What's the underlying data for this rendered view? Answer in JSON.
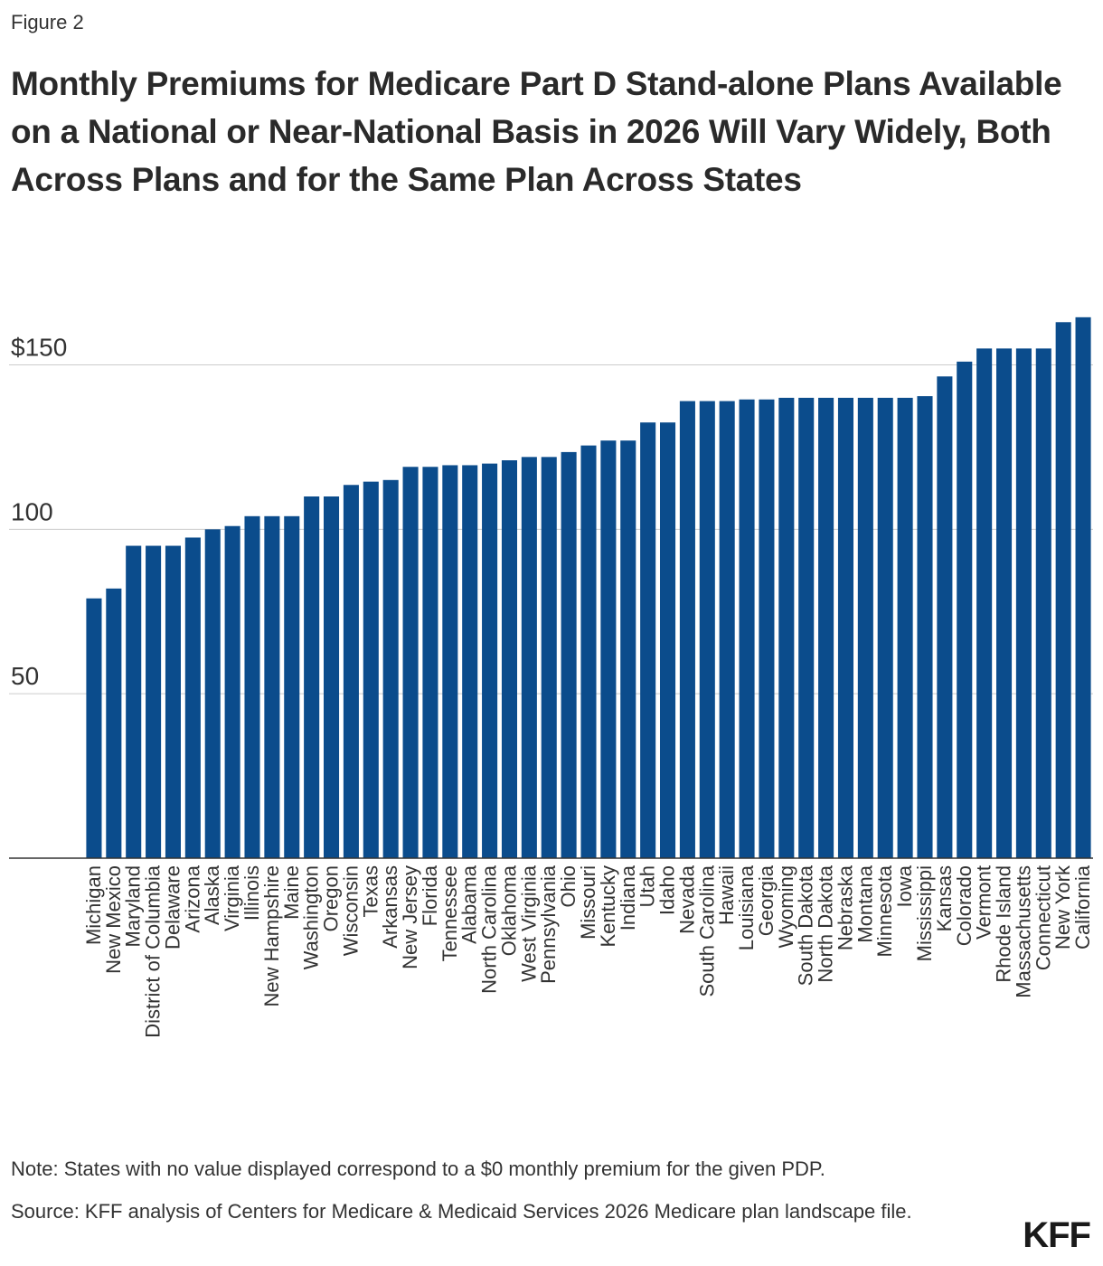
{
  "figure_label": "Figure 2",
  "title": "Monthly Premiums for Medicare Part D Stand-alone Plans Available on a National or Near-National Basis in 2026 Will Vary Widely, Both Across Plans and for the Same Plan Across States",
  "note": "Note: States with no value displayed correspond to a $0 monthly premium for the given PDP.",
  "source": "Source: KFF analysis of Centers for Medicare & Medicaid Services 2026 Medicare plan landscape file.",
  "logo_text": "KFF",
  "colors": {
    "bar": "#0b4c8c",
    "grid": "#cccccc",
    "axis": "#333333"
  },
  "chart_data": {
    "type": "bar",
    "title": "Monthly Premiums for Medicare Part D Stand-alone Plans Available on a National or Near-National Basis in 2026 Will Vary Widely, Both Across Plans and for the Same Plan Across States",
    "xlabel": "",
    "ylabel": "",
    "ylim": [
      0,
      165
    ],
    "yticks": [
      {
        "value": 50,
        "label": "50"
      },
      {
        "value": 100,
        "label": "100"
      },
      {
        "value": 150,
        "label": "$150"
      }
    ],
    "grid": true,
    "categories": [
      "Michigan",
      "New Mexico",
      "Maryland",
      "District of Columbia",
      "Delaware",
      "Arizona",
      "Alaska",
      "Virginia",
      "Illinois",
      "New Hampshire",
      "Maine",
      "Washington",
      "Oregon",
      "Wisconsin",
      "Texas",
      "Arkansas",
      "New Jersey",
      "Florida",
      "Tennessee",
      "Alabama",
      "North Carolina",
      "Oklahoma",
      "West Virginia",
      "Pennsylvania",
      "Ohio",
      "Missouri",
      "Kentucky",
      "Indiana",
      "Utah",
      "Idaho",
      "Nevada",
      "South Carolina",
      "Hawaii",
      "Louisiana",
      "Georgia",
      "Wyoming",
      "South Dakota",
      "North Dakota",
      "Nebraska",
      "Montana",
      "Minnesota",
      "Iowa",
      "Mississippi",
      "Kansas",
      "Colorado",
      "Vermont",
      "Rhode Island",
      "Massachusetts",
      "Connecticut",
      "New York",
      "California"
    ],
    "values": [
      79,
      82,
      95,
      95,
      95,
      97.5,
      100,
      101,
      104,
      104,
      104,
      110,
      110,
      113.5,
      114.5,
      115,
      119,
      119,
      119.5,
      119.5,
      120,
      121,
      122,
      122,
      123.5,
      125.5,
      127,
      127,
      132.5,
      132.5,
      139,
      139,
      139,
      139.5,
      139.5,
      140,
      140,
      140,
      140,
      140,
      140,
      140,
      140.5,
      146.5,
      151,
      155,
      155,
      155,
      155,
      163,
      164.5
    ]
  }
}
